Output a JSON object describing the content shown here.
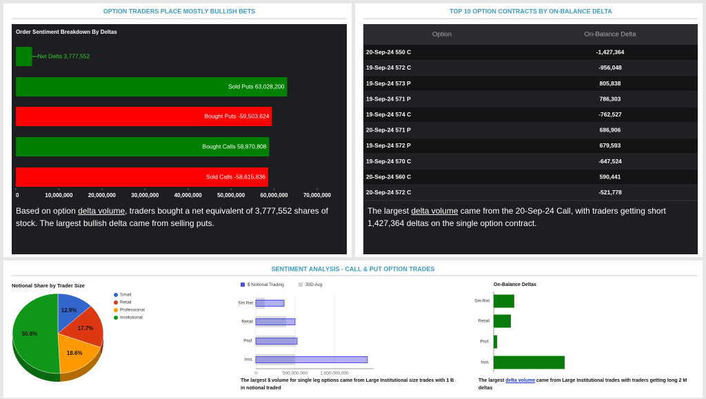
{
  "headers": {
    "top_left": "OPTION TRADERS PLACE MOSTLY BULLISH BETS",
    "top_right": "TOP 10 OPTION CONTRACTS BY ON-BALANCE DELTA",
    "bottom": "SENTIMENT ANALYSIS - CALL & PUT OPTION TRADES"
  },
  "notes": {
    "left": {
      "before": "Based on option ",
      "link": "delta volume",
      "after": ", traders bought a net equivalent of 3,777,552 shares of stock. The largest bullish delta came from selling puts."
    },
    "right": {
      "before": "The largest ",
      "link": "delta volume",
      "after": " came from the 20-Sep-24 Call, with traders getting short 1,427,364 deltas on the single option contract."
    },
    "notional": {
      "text": "The largest $ volume for single leg options came from Large Institutional size trades with 1 B in notional traded"
    },
    "obd": {
      "before": "The largest ",
      "link": "delta volume",
      "after": " came from Large Institutional trades with traders getting long 2 M deltas"
    }
  },
  "table": {
    "columns": [
      "Option",
      "On-Balance Delta"
    ],
    "rows": [
      [
        "20-Sep-24 550 C",
        "-1,427,364"
      ],
      [
        "19-Sep-24 572 C",
        "-956,048"
      ],
      [
        "19-Sep-24 573 P",
        "805,838"
      ],
      [
        "19-Sep-24 571 P",
        "786,303"
      ],
      [
        "19-Sep-24 574 C",
        "-762,527"
      ],
      [
        "20-Sep-24 571 P",
        "686,906"
      ],
      [
        "19-Sep-24 572 P",
        "679,593"
      ],
      [
        "19-Sep-24 570 C",
        "-647,524"
      ],
      [
        "20-Sep-24 560 C",
        "590,441"
      ],
      [
        "20-Sep-24 572 C",
        "-521,778"
      ]
    ]
  },
  "chart_data": [
    {
      "type": "bar",
      "orientation": "horizontal",
      "title": "Order Sentiment Breakdown By Deltas",
      "categories": [
        "Net Delta 3,777,552",
        "Sold Puts 63,028,200",
        "Bought Puts -59,503,624",
        "Bought Calls 58,870,808",
        "Sold Calls -58,615,836"
      ],
      "values": [
        3777552,
        63028200,
        59503624,
        58870808,
        58615836
      ],
      "colors": [
        "#008000",
        "#008000",
        "#ff0000",
        "#008000",
        "#ff0000"
      ],
      "xlim": [
        0,
        70000000
      ],
      "xticks": [
        0,
        {
          "value": 10000000,
          "label": "10,000,000"
        },
        {
          "value": 20000000,
          "label": "20,000,000"
        },
        {
          "value": 30000000,
          "label": "30,000,000"
        },
        {
          "value": 40000000,
          "label": "40,000,000"
        },
        {
          "value": 50000000,
          "label": "50,000,000"
        },
        {
          "value": 60000000,
          "label": "60,000,000"
        },
        {
          "value": 70000000,
          "label": "70,000,000"
        }
      ]
    },
    {
      "type": "pie",
      "title": "Notional Share by Trader Size",
      "categories": [
        "Small",
        "Retail",
        "Professional",
        "Institutional"
      ],
      "values": [
        12.9,
        17.7,
        18.6,
        50.8
      ],
      "value_labels": [
        "12.9%",
        "17.7%",
        "18.6%",
        "50.8%"
      ],
      "colors": [
        "#3366cc",
        "#dc3912",
        "#ff9900",
        "#109618"
      ]
    },
    {
      "type": "bar",
      "orientation": "horizontal",
      "categories": [
        "Sm Ret",
        "Retail",
        "Prof.",
        "Inst."
      ],
      "series": [
        {
          "name": "$ Notional Trading",
          "color": "#5050e0",
          "values": [
            360000000,
            500000000,
            526000000,
            1420000000
          ]
        },
        {
          "name": "30D Avg",
          "color": "#d3d3d3",
          "values": [
            114000000,
            386000000,
            508000000,
            500000000
          ]
        }
      ],
      "xlim": [
        0,
        1500000000
      ],
      "xticks": [
        0,
        {
          "value": 500000000,
          "label": "500,000,000"
        },
        {
          "value": 1000000000,
          "label": "1,000,000,000"
        }
      ]
    },
    {
      "type": "bar",
      "orientation": "horizontal",
      "title": "On-Balance Deltas",
      "categories": [
        "Sm Ret",
        "Retail",
        "Prof.",
        "Inst."
      ],
      "values": [
        580000,
        485000,
        100000,
        2000000
      ],
      "color": "#0a7a0a",
      "xlim": [
        0,
        2000000
      ]
    }
  ]
}
